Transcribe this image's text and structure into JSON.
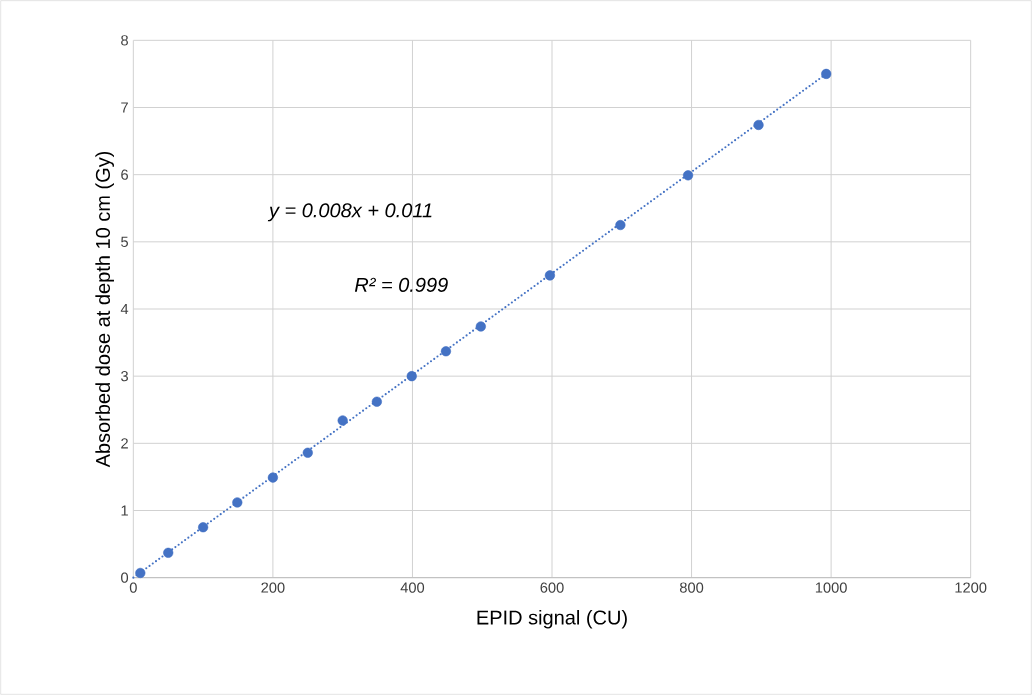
{
  "chart_data": {
    "type": "scatter",
    "xlabel": "EPID signal (CU)",
    "ylabel": "Absorbed dose at depth 10 cm (Gy)",
    "annotations": [
      "y = 0.008x + 0.011",
      "R² = 0.999"
    ],
    "series": [
      {
        "type": "scatter",
        "color": "#4472c4",
        "marker": "circle",
        "x": [
          10,
          50,
          100,
          149,
          200,
          250,
          300,
          349,
          399,
          448,
          498,
          597,
          698,
          795,
          896,
          993
        ],
        "values": [
          0.07,
          0.37,
          0.75,
          1.12,
          1.49,
          1.86,
          2.34,
          2.62,
          3.0,
          3.37,
          3.74,
          4.5,
          5.25,
          5.99,
          6.74,
          7.5
        ]
      },
      {
        "type": "line",
        "color": "#4472c4",
        "line_style": "dotted",
        "x": [
          0,
          993
        ],
        "values": [
          0.0,
          7.5
        ]
      }
    ],
    "xlim": [
      0,
      1200
    ],
    "ylim": [
      0,
      8
    ],
    "xticks": [
      0,
      200,
      400,
      600,
      800,
      1000,
      1200
    ],
    "yticks": [
      0,
      1,
      2,
      3,
      4,
      5,
      6,
      7,
      8
    ],
    "grid": true
  }
}
